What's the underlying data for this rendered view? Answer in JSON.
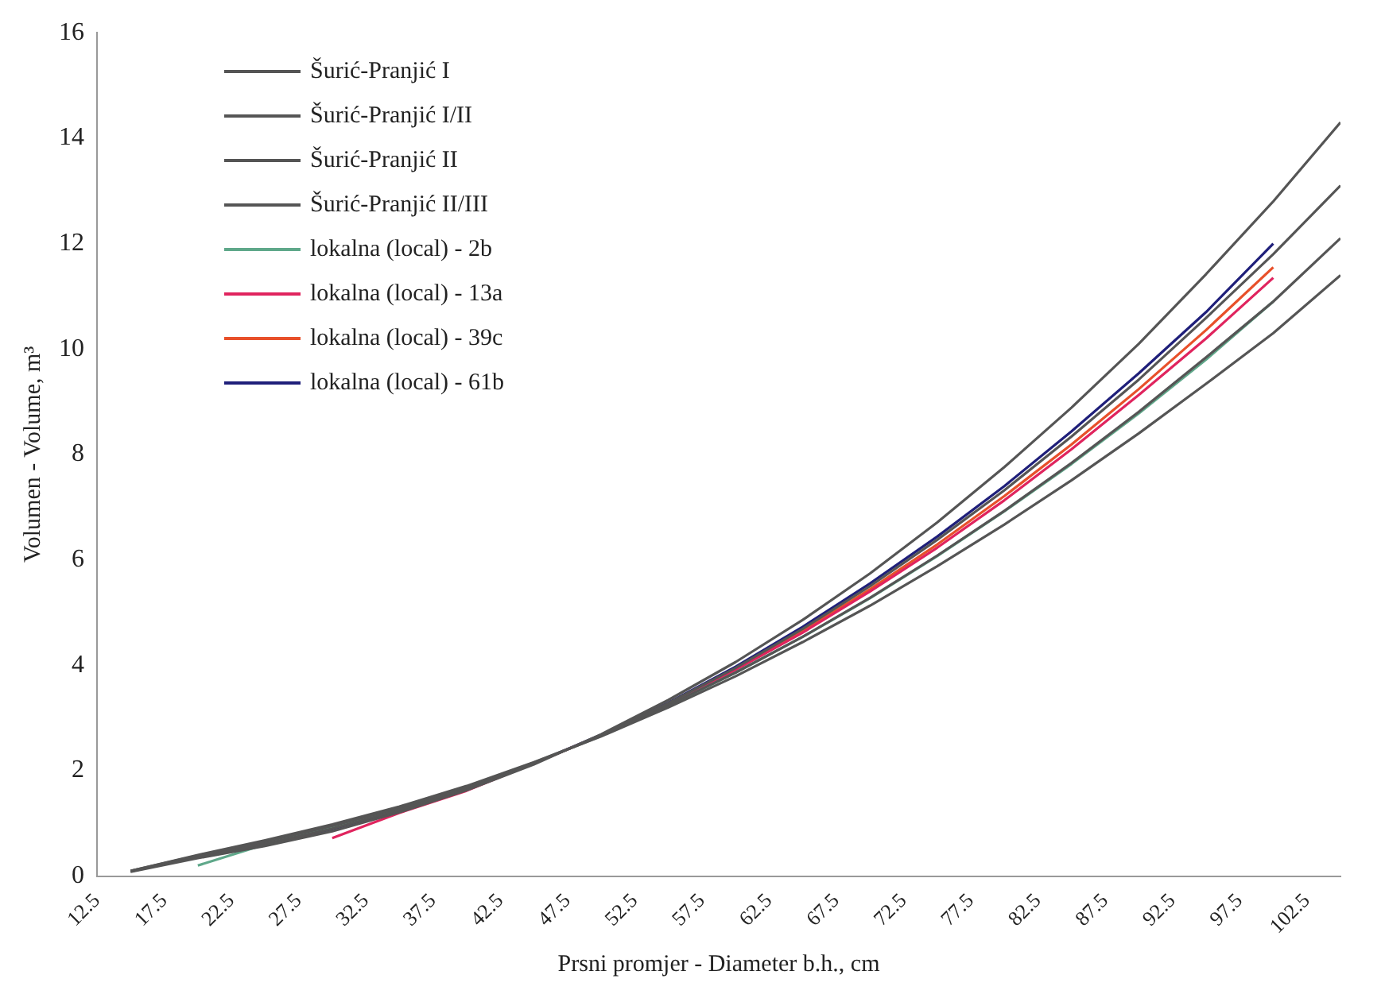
{
  "chart_data": {
    "type": "line",
    "xlabel": "Prsni promjer - Diameter b.h., cm",
    "ylabel": "Volumen - Volume, m³",
    "xlim": [
      12.5,
      105
    ],
    "xticks": [
      12.5,
      17.5,
      22.5,
      27.5,
      32.5,
      37.5,
      42.5,
      47.5,
      52.5,
      57.5,
      62.5,
      67.5,
      72.5,
      77.5,
      82.5,
      87.5,
      92.5,
      97.5,
      102.5
    ],
    "ylim": [
      0,
      16
    ],
    "yticks": [
      0,
      2,
      4,
      6,
      8,
      10,
      12,
      14,
      16
    ],
    "grid": false,
    "legend": "top left",
    "marker": "none",
    "line_style": "solid",
    "series": [
      {
        "name": "Šurić-Pranjić I",
        "color": "#555555",
        "x": [
          15,
          20,
          25,
          30,
          35,
          40,
          45,
          50,
          55,
          60,
          65,
          70,
          75,
          80,
          85,
          90,
          95,
          100,
          105
        ],
        "values": [
          0.08,
          0.34,
          0.57,
          0.85,
          1.21,
          1.63,
          2.12,
          2.69,
          3.34,
          4.06,
          4.86,
          5.74,
          6.71,
          7.76,
          8.89,
          10.1,
          11.42,
          12.8,
          14.3
        ]
      },
      {
        "name": "Šurić-Pranjić I/II",
        "color": "#555555",
        "x": [
          15,
          20,
          25,
          30,
          35,
          40,
          45,
          50,
          55,
          60,
          65,
          70,
          75,
          80,
          85,
          90,
          95,
          100,
          105
        ],
        "values": [
          0.09,
          0.36,
          0.61,
          0.9,
          1.25,
          1.66,
          2.14,
          2.67,
          3.28,
          3.95,
          4.69,
          5.5,
          6.38,
          7.32,
          8.34,
          9.42,
          10.59,
          11.8,
          13.1
        ]
      },
      {
        "name": "Šurić-Pranjić II",
        "color": "#555555",
        "x": [
          15,
          20,
          25,
          30,
          35,
          40,
          45,
          50,
          55,
          60,
          65,
          70,
          75,
          80,
          85,
          90,
          95,
          100,
          105
        ],
        "values": [
          0.1,
          0.39,
          0.65,
          0.95,
          1.29,
          1.69,
          2.15,
          2.66,
          3.24,
          3.86,
          4.54,
          5.28,
          6.08,
          6.93,
          7.84,
          8.81,
          9.84,
          10.9,
          12.1
        ]
      },
      {
        "name": "Šurić-Pranjić II/III",
        "color": "#555555",
        "x": [
          15,
          20,
          25,
          30,
          35,
          40,
          45,
          50,
          55,
          60,
          65,
          70,
          75,
          80,
          85,
          90,
          95,
          100,
          105
        ],
        "values": [
          0.1,
          0.4,
          0.68,
          0.98,
          1.32,
          1.71,
          2.16,
          2.65,
          3.2,
          3.79,
          4.44,
          5.13,
          5.88,
          6.67,
          7.51,
          8.4,
          9.34,
          10.3,
          11.4
        ]
      },
      {
        "name": "lokalna (local) - 2b",
        "color": "#5fa88a",
        "x": [
          20,
          25,
          30,
          35,
          40,
          45,
          50,
          55,
          60,
          65,
          70,
          75,
          80,
          85,
          90,
          95,
          100
        ],
        "values": [
          0.2,
          0.6,
          0.94,
          1.29,
          1.69,
          2.15,
          2.66,
          3.23,
          3.86,
          4.54,
          5.27,
          6.07,
          6.92,
          7.82,
          8.78,
          9.8,
          10.9
        ]
      },
      {
        "name": "lokalna (local) - 13a",
        "color": "#e0245e",
        "x": [
          30,
          35,
          40,
          45,
          50,
          55,
          60,
          65,
          70,
          75,
          80,
          85,
          90,
          95,
          100
        ],
        "values": [
          0.72,
          1.2,
          1.62,
          2.14,
          2.67,
          3.26,
          3.91,
          4.62,
          5.4,
          6.23,
          7.13,
          8.1,
          9.13,
          10.2,
          11.35
        ]
      },
      {
        "name": "lokalna (local) - 39c",
        "color": "#e8502a",
        "x": [
          25,
          30,
          35,
          40,
          45,
          50,
          55,
          60,
          65,
          70,
          75,
          80,
          85,
          90,
          95,
          100
        ],
        "values": [
          0.6,
          0.91,
          1.26,
          1.67,
          2.14,
          2.67,
          3.27,
          3.93,
          4.65,
          5.44,
          6.29,
          7.21,
          8.19,
          9.24,
          10.36,
          11.55
        ]
      },
      {
        "name": "lokalna (local) - 61b",
        "color": "#1f1f7a",
        "x": [
          25,
          30,
          35,
          40,
          45,
          50,
          55,
          60,
          65,
          70,
          75,
          80,
          85,
          90,
          95,
          100
        ],
        "values": [
          0.6,
          0.89,
          1.24,
          1.66,
          2.14,
          2.68,
          3.29,
          3.97,
          4.73,
          5.55,
          6.44,
          7.4,
          8.44,
          9.54,
          10.7,
          12.0
        ]
      }
    ]
  }
}
